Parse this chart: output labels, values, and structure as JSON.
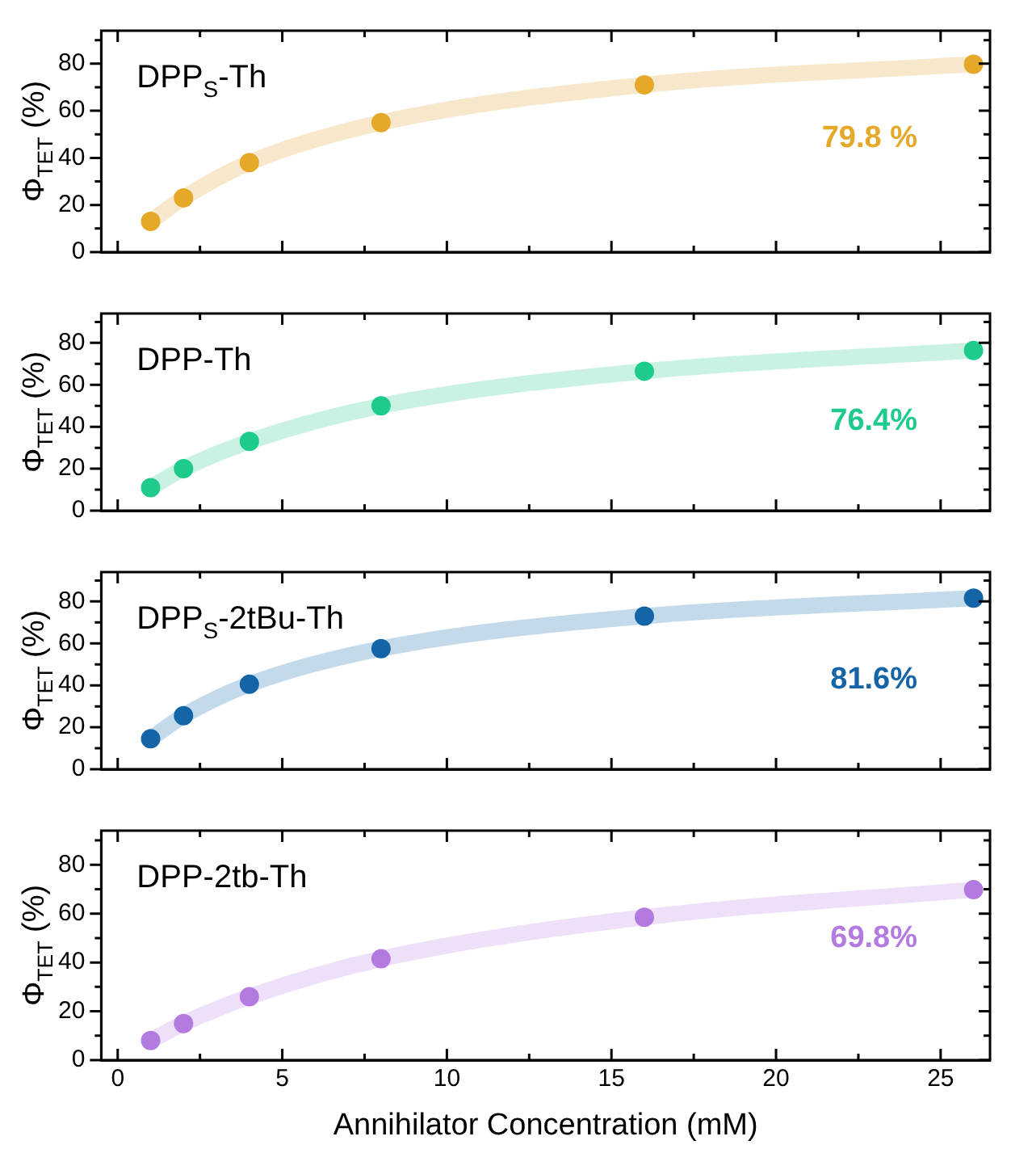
{
  "chart_data": [
    {
      "type": "scatter",
      "title": "DPP$_{S}$-Th",
      "ylabel": "Φ$_{TET}$ (%)",
      "annotations": [
        "79.8 %"
      ],
      "x": [
        1,
        2,
        4,
        8,
        16,
        26
      ],
      "series": [
        {
          "type": "line",
          "marker": "none",
          "color": "#f7e8cb",
          "x": [
            1,
            2,
            4,
            8,
            16,
            26
          ],
          "values": [
            13,
            23,
            38,
            55,
            71,
            79.8
          ]
        },
        {
          "type": "scatter",
          "marker": "circle",
          "color": "#e5a829",
          "values": [
            13,
            23,
            38,
            55,
            71,
            79.8
          ]
        }
      ],
      "xlim": [
        -0.5,
        26.5
      ],
      "ylim": [
        0,
        94
      ],
      "xticks": [
        0,
        {
          "value": 2.5,
          "label": null
        },
        5,
        {
          "value": 7.5,
          "label": null
        },
        10,
        {
          "value": 12.5,
          "label": null
        },
        15,
        {
          "value": 17.5,
          "label": null
        },
        20,
        {
          "value": 22.5,
          "label": null
        },
        25
      ],
      "yticks": [
        0,
        {
          "value": 10,
          "label": null
        },
        20,
        {
          "value": 30,
          "label": null
        },
        40,
        {
          "value": 50,
          "label": null
        },
        60,
        {
          "value": 70,
          "label": null
        },
        80,
        {
          "value": 90,
          "label": null
        }
      ],
      "tick_labels": "y"
    },
    {
      "type": "scatter",
      "title": "DPP-Th",
      "ylabel": "Φ$_{TET}$ (%)",
      "annotations": [
        "76.4%"
      ],
      "x": [
        1,
        2,
        4,
        8,
        16,
        26
      ],
      "series": [
        {
          "type": "line",
          "marker": "none",
          "color": "#c9f2e2",
          "x": [
            1,
            2,
            4,
            8,
            16,
            26
          ],
          "values": [
            11,
            20,
            33,
            50,
            66.5,
            76.4
          ]
        },
        {
          "type": "scatter",
          "marker": "circle",
          "color": "#1ecb8b",
          "values": [
            11,
            20,
            33,
            50,
            66.5,
            76.4
          ]
        }
      ],
      "xlim": [
        -0.5,
        26.5
      ],
      "ylim": [
        0,
        94
      ],
      "xticks": [
        0,
        {
          "value": 2.5,
          "label": null
        },
        5,
        {
          "value": 7.5,
          "label": null
        },
        10,
        {
          "value": 12.5,
          "label": null
        },
        15,
        {
          "value": 17.5,
          "label": null
        },
        20,
        {
          "value": 22.5,
          "label": null
        },
        25
      ],
      "yticks": [
        0,
        {
          "value": 10,
          "label": null
        },
        20,
        {
          "value": 30,
          "label": null
        },
        40,
        {
          "value": 50,
          "label": null
        },
        60,
        {
          "value": 70,
          "label": null
        },
        80,
        {
          "value": 90,
          "label": null
        }
      ],
      "tick_labels": "y"
    },
    {
      "type": "scatter",
      "title": "DPP$_{S}$-2tBu-Th",
      "ylabel": "Φ$_{TET}$ (%)",
      "annotations": [
        "81.6%"
      ],
      "x": [
        1,
        2,
        4,
        8,
        16,
        26
      ],
      "series": [
        {
          "type": "line",
          "marker": "none",
          "color": "#c3daeb",
          "x": [
            1,
            2,
            4,
            8,
            16,
            26
          ],
          "values": [
            14.5,
            25.5,
            40.5,
            57.5,
            73,
            81.6
          ]
        },
        {
          "type": "scatter",
          "marker": "circle",
          "color": "#1465a8",
          "values": [
            14.5,
            25.5,
            40.5,
            57.5,
            73,
            81.6
          ]
        }
      ],
      "xlim": [
        -0.5,
        26.5
      ],
      "ylim": [
        0,
        94
      ],
      "xticks": [
        0,
        {
          "value": 2.5,
          "label": null
        },
        5,
        {
          "value": 7.5,
          "label": null
        },
        10,
        {
          "value": 12.5,
          "label": null
        },
        15,
        {
          "value": 17.5,
          "label": null
        },
        20,
        {
          "value": 22.5,
          "label": null
        },
        25
      ],
      "yticks": [
        0,
        {
          "value": 10,
          "label": null
        },
        20,
        {
          "value": 30,
          "label": null
        },
        40,
        {
          "value": 50,
          "label": null
        },
        60,
        {
          "value": 70,
          "label": null
        },
        80,
        {
          "value": 90,
          "label": null
        }
      ],
      "tick_labels": "y"
    },
    {
      "type": "scatter",
      "title": "DPP-2tb-Th",
      "ylabel": "Φ$_{TET}$ (%)",
      "xlabel": "Annihilator Concentration (mM)",
      "annotations": [
        "69.8%"
      ],
      "x": [
        1,
        2,
        4,
        8,
        16,
        26
      ],
      "series": [
        {
          "type": "line",
          "marker": "none",
          "color": "#ede0f8",
          "x": [
            1,
            2,
            4,
            8,
            16,
            26
          ],
          "values": [
            8,
            15,
            26,
            41.5,
            58.5,
            69.8
          ]
        },
        {
          "type": "scatter",
          "marker": "circle",
          "color": "#b37ae0",
          "values": [
            8,
            15,
            26,
            41.5,
            58.5,
            69.8
          ]
        }
      ],
      "xlim": [
        -0.5,
        26.5
      ],
      "ylim": [
        0,
        94
      ],
      "xticks": [
        0,
        {
          "value": 2.5,
          "label": null
        },
        5,
        {
          "value": 7.5,
          "label": null
        },
        10,
        {
          "value": 12.5,
          "label": null
        },
        15,
        {
          "value": 17.5,
          "label": null
        },
        20,
        {
          "value": 22.5,
          "label": null
        },
        25
      ],
      "yticks": [
        0,
        {
          "value": 10,
          "label": null
        },
        20,
        {
          "value": 30,
          "label": null
        },
        40,
        {
          "value": 50,
          "label": null
        },
        60,
        {
          "value": 70,
          "label": null
        },
        80,
        {
          "value": 90,
          "label": null
        }
      ]
    }
  ]
}
